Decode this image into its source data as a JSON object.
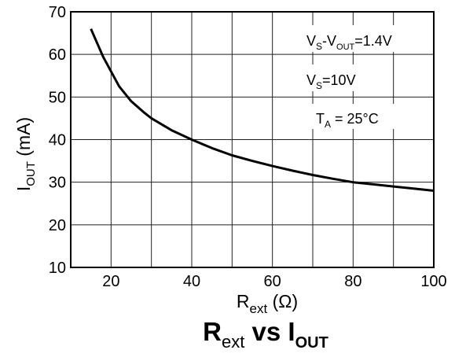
{
  "chart_data": {
    "type": "line",
    "title_main": "R",
    "title_main_sub": "ext",
    "title_vs": " vs ",
    "title_i": "I",
    "title_i_sub": "OUT",
    "xlabel_main": "R",
    "xlabel_sub": "ext",
    "xlabel_unit": " (Ω)",
    "ylabel_main": "I",
    "ylabel_sub": "OUT",
    "ylabel_unit": "  (mA)",
    "xlim": [
      10,
      100
    ],
    "ylim": [
      10,
      70
    ],
    "x_ticks": [
      20,
      40,
      60,
      80,
      100
    ],
    "x_tick_labels": [
      "20",
      "40",
      "60",
      "80",
      "100"
    ],
    "x_grid": [
      20,
      30,
      40,
      50,
      60,
      70,
      80,
      90
    ],
    "y_ticks": [
      10,
      20,
      30,
      40,
      50,
      60,
      70
    ],
    "y_tick_labels": [
      "10",
      "20",
      "30",
      "40",
      "50",
      "60",
      "70"
    ],
    "y_grid": [
      20,
      30,
      40,
      50,
      60
    ],
    "grid": true,
    "series": [
      {
        "x": [
          15,
          18,
          20,
          22,
          25,
          28,
          30,
          35,
          40,
          45,
          50,
          55,
          60,
          65,
          70,
          75,
          80,
          85,
          90,
          95,
          100
        ],
        "y": [
          66,
          59.5,
          56,
          52.5,
          49,
          46.5,
          45,
          42.2,
          40,
          38,
          36.3,
          35,
          33.8,
          32.7,
          31.7,
          30.8,
          30,
          29.5,
          29,
          28.5,
          28
        ]
      }
    ],
    "annotations": [
      {
        "main": "V",
        "sub": "S",
        "mid": "-V",
        "sub2": "OUT",
        "rest": "=1.4V"
      },
      {
        "main": "V",
        "sub": "S",
        "rest": "=10V"
      },
      {
        "main": "T",
        "sub": "A",
        "rest": " = 25°C"
      }
    ]
  }
}
